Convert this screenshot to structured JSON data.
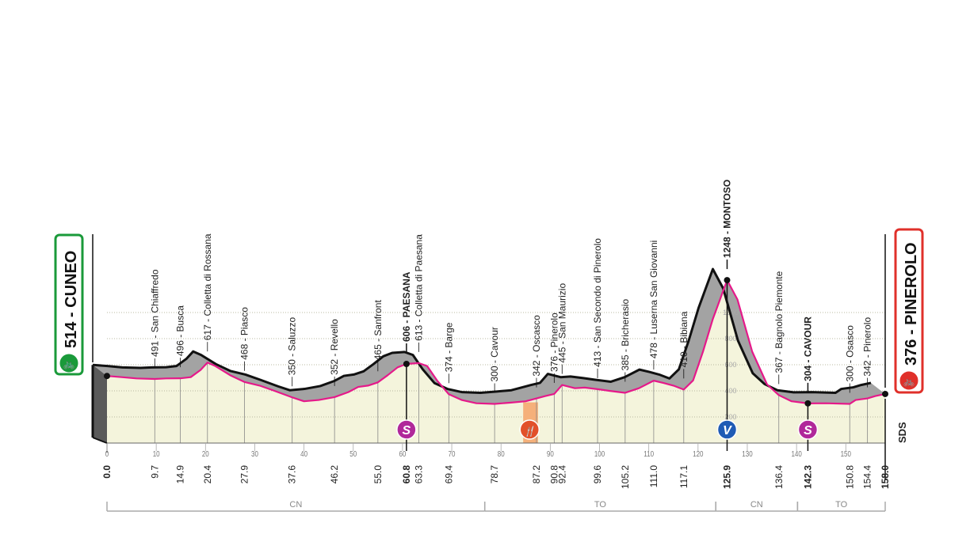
{
  "chart_data": {
    "type": "area",
    "title": "",
    "xlabel": "",
    "ylabel": "",
    "xlim": [
      0,
      158
    ],
    "ylim": [
      0,
      1300
    ],
    "x_ticks": [
      0,
      10,
      20,
      30,
      40,
      50,
      60,
      70,
      80,
      90,
      100,
      110,
      120,
      130,
      140,
      150
    ],
    "y_ticks": [
      200,
      400,
      600,
      800,
      1000
    ],
    "grid": true,
    "start": {
      "elev": 514,
      "name": "CUNEO",
      "label": "514 - CUNEO",
      "color": "#1a9a3a"
    },
    "finish": {
      "elev": 376,
      "name": "PINEROLO",
      "label": "376 - PINEROLO",
      "color": "#e0302a"
    },
    "profile": [
      [
        0,
        514
      ],
      [
        3,
        505
      ],
      [
        6,
        495
      ],
      [
        9.7,
        491
      ],
      [
        12,
        495
      ],
      [
        14.9,
        496
      ],
      [
        17,
        505
      ],
      [
        19,
        560
      ],
      [
        20.4,
        617
      ],
      [
        22,
        590
      ],
      [
        25,
        520
      ],
      [
        27.9,
        468
      ],
      [
        31,
        440
      ],
      [
        34,
        400
      ],
      [
        37.6,
        350
      ],
      [
        40,
        320
      ],
      [
        43,
        330
      ],
      [
        46.2,
        352
      ],
      [
        49,
        390
      ],
      [
        51,
        430
      ],
      [
        53,
        440
      ],
      [
        55,
        465
      ],
      [
        57,
        520
      ],
      [
        59,
        580
      ],
      [
        60.8,
        606
      ],
      [
        63.3,
        613
      ],
      [
        65,
        590
      ],
      [
        67,
        480
      ],
      [
        69.4,
        374
      ],
      [
        72,
        330
      ],
      [
        75,
        305
      ],
      [
        78.7,
        300
      ],
      [
        82,
        310
      ],
      [
        85,
        320
      ],
      [
        87.2,
        342
      ],
      [
        89,
        360
      ],
      [
        90.8,
        376
      ],
      [
        92.4,
        445
      ],
      [
        95,
        420
      ],
      [
        97,
        425
      ],
      [
        99.6,
        413
      ],
      [
        102,
        400
      ],
      [
        105.2,
        385
      ],
      [
        108,
        420
      ],
      [
        111,
        478
      ],
      [
        113,
        460
      ],
      [
        115,
        440
      ],
      [
        117.1,
        410
      ],
      [
        119,
        480
      ],
      [
        121,
        700
      ],
      [
        123,
        950
      ],
      [
        125.9,
        1248
      ],
      [
        128,
        1100
      ],
      [
        131,
        700
      ],
      [
        134,
        450
      ],
      [
        136.4,
        367
      ],
      [
        139,
        320
      ],
      [
        142.3,
        304
      ],
      [
        146,
        305
      ],
      [
        150.8,
        300
      ],
      [
        152,
        330
      ],
      [
        154.4,
        342
      ],
      [
        156,
        360
      ],
      [
        158,
        376
      ]
    ],
    "waypoints": [
      {
        "km": 9.7,
        "elev": 491,
        "label": "491 - San Chiaffredo",
        "km_label": "9.7",
        "bold": false
      },
      {
        "km": 14.9,
        "elev": 496,
        "label": "496 - Busca",
        "km_label": "14.9",
        "bold": false
      },
      {
        "km": 20.4,
        "elev": 617,
        "label": "617 - Colletta di Rossana",
        "km_label": "20.4",
        "bold": false
      },
      {
        "km": 27.9,
        "elev": 468,
        "label": "468 - Piasco",
        "km_label": "27.9",
        "bold": false
      },
      {
        "km": 37.6,
        "elev": 350,
        "label": "350 - Saluzzo",
        "km_label": "37.6",
        "bold": false
      },
      {
        "km": 46.2,
        "elev": 352,
        "label": "352 - Revello",
        "km_label": "46.2",
        "bold": false
      },
      {
        "km": 55.0,
        "elev": 465,
        "label": "465 - Sanfront",
        "km_label": "55.0",
        "bold": false
      },
      {
        "km": 60.8,
        "elev": 606,
        "label": "606 - PAESANA",
        "km_label": "60.8",
        "bold": true
      },
      {
        "km": 63.3,
        "elev": 613,
        "label": "613 - Colletta di Paesana",
        "km_label": "63.3",
        "bold": false
      },
      {
        "km": 69.4,
        "elev": 374,
        "label": "374 - Barge",
        "km_label": "69.4",
        "bold": false
      },
      {
        "km": 78.7,
        "elev": 300,
        "label": "300 - Cavour",
        "km_label": "78.7",
        "bold": false
      },
      {
        "km": 87.2,
        "elev": 342,
        "label": "342 - Oscasco",
        "km_label": "87.2",
        "bold": false
      },
      {
        "km": 90.8,
        "elev": 376,
        "label": "376 - Pinerolo",
        "km_label": "90.8",
        "bold": false
      },
      {
        "km": 92.4,
        "elev": 445,
        "label": "445 - San Maurizio",
        "km_label": "92.4",
        "bold": false
      },
      {
        "km": 99.6,
        "elev": 413,
        "label": "413 - San Secondo di Pinerolo",
        "km_label": "99.6",
        "bold": false
      },
      {
        "km": 105.2,
        "elev": 385,
        "label": "385 - Bricherasio",
        "km_label": "105.2",
        "bold": false
      },
      {
        "km": 111.0,
        "elev": 478,
        "label": "478 - Luserna San Giovanni",
        "km_label": "111.0",
        "bold": false
      },
      {
        "km": 117.1,
        "elev": 410,
        "label": "410 - Bibiana",
        "km_label": "117.1",
        "bold": false
      },
      {
        "km": 125.9,
        "elev": 1248,
        "label": "1248 - MONTOSO",
        "km_label": "125.9",
        "bold": true
      },
      {
        "km": 136.4,
        "elev": 367,
        "label": "367 - Bagnolo Piemonte",
        "km_label": "136.4",
        "bold": false
      },
      {
        "km": 142.3,
        "elev": 304,
        "label": "304 - CAVOUR",
        "km_label": "142.3",
        "bold": true
      },
      {
        "km": 150.8,
        "elev": 300,
        "label": "300 - Osasco",
        "km_label": "150.8",
        "bold": false
      },
      {
        "km": 154.4,
        "elev": 342,
        "label": "342 - Pinerolo",
        "km_label": "154.4",
        "bold": false
      }
    ],
    "km_start_label": "0.0",
    "km_finish_label": "158.0",
    "markers": [
      {
        "km": 60.8,
        "type": "sprint",
        "icon": "sprint-s-icon",
        "glyph": "S",
        "color": "#b0289a"
      },
      {
        "km": 85.8,
        "type": "feed-zone",
        "icon": "feed-zone-icon",
        "glyph": "🍴",
        "color": "#e2502a",
        "band_start_km": 84.5,
        "band_end_km": 87.5,
        "band_color": "#f5b07a"
      },
      {
        "km": 125.9,
        "type": "climb",
        "icon": "climb-v-icon",
        "glyph": "V",
        "color": "#1f5bb5"
      },
      {
        "km": 142.3,
        "type": "sprint",
        "icon": "sprint-s-icon",
        "glyph": "S",
        "color": "#b0289a"
      }
    ],
    "provinces": [
      {
        "label": "CN",
        "from_km": 0,
        "to_km": 76.7
      },
      {
        "label": "TO",
        "from_km": 76.7,
        "to_km": 123.6
      },
      {
        "label": "CN",
        "from_km": 123.6,
        "to_km": 140.2
      },
      {
        "label": "TO",
        "from_km": 140.2,
        "to_km": 158
      }
    ],
    "sds_label": "SDS",
    "colors": {
      "road_line": "#e5198a",
      "relief": "#a3a3a3",
      "ground": "#f4f4dc",
      "outline": "#111111"
    }
  }
}
